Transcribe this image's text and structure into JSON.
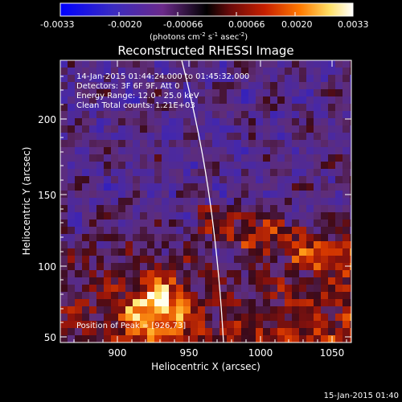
{
  "colorbar": {
    "ticks": [
      "-0.0033",
      "-0.0020",
      "-0.00066",
      "0.00066",
      "0.0020",
      "0.0033"
    ],
    "unit_label": "(photons cm",
    "unit_sup1": "-2",
    "unit_mid": " s",
    "unit_sup2": "-1",
    "unit_end": " asec",
    "unit_sup3": "-2",
    "unit_close": ")"
  },
  "plot": {
    "title": "Reconstructed RHESSI Image",
    "xlabel": "Heliocentric X (arcsec)",
    "ylabel": "Heliocentric Y (arcsec)",
    "xticks": [
      "900",
      "950",
      "1000",
      "1050"
    ],
    "yticks": [
      "50",
      "100",
      "150",
      "200"
    ],
    "info": [
      "14-Jan-2015 01:44:24.000 to 01:45:32.000",
      "Detectors: 3F 6F 9F, Att 0",
      "Energy Range: 12.0 - 25.0 keV",
      "Clean    Total counts: 1.21E+03"
    ],
    "peak_label": "Position of Peak = [926,73]",
    "timestamp": "15-Jan-2015 01:40"
  },
  "colors": {
    "background": "#000000",
    "colormap": [
      "#0000ff",
      "#3a1f9e",
      "#6b2a8a",
      "#000000",
      "#8a1010",
      "#d43000",
      "#ff8800",
      "#ffee66",
      "#ffffff"
    ]
  }
}
